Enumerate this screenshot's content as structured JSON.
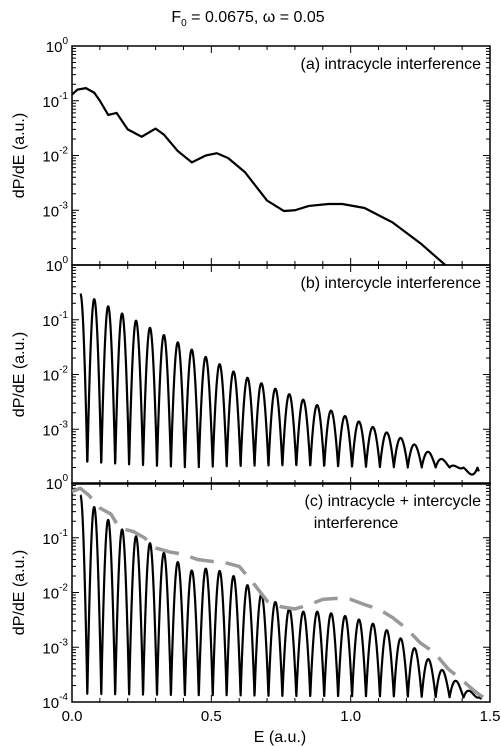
{
  "figure": {
    "title": "F",
    "title_sub": "0",
    "title_rest": " = 0.0675,   ω = 0.05",
    "xlabel": "E (a.u.)",
    "ylabel": "dP/dE (a.u.)"
  },
  "chart_data": [
    {
      "type": "line",
      "panel": "a",
      "annotation": [
        "(a) intracycle interference"
      ],
      "xlim": [
        0,
        1.5
      ],
      "ylim": [
        0.0001,
        1
      ],
      "yscale": "log",
      "y_tick_labels": [
        "10^0",
        "10^-1",
        "10^-2",
        "10^-3"
      ],
      "series": [
        {
          "color": "#000000",
          "x": [
            0.0,
            0.02,
            0.05,
            0.08,
            0.1,
            0.13,
            0.16,
            0.2,
            0.25,
            0.3,
            0.33,
            0.38,
            0.43,
            0.48,
            0.52,
            0.56,
            0.62,
            0.7,
            0.76,
            0.8,
            0.85,
            0.92,
            0.97,
            1.05,
            1.15,
            1.25,
            1.35,
            1.4
          ],
          "y": [
            0.13,
            0.16,
            0.17,
            0.14,
            0.1,
            0.055,
            0.06,
            0.03,
            0.022,
            0.031,
            0.024,
            0.012,
            0.0075,
            0.01,
            0.011,
            0.009,
            0.005,
            0.0015,
            0.00097,
            0.001,
            0.0012,
            0.0013,
            0.0013,
            0.0011,
            0.0006,
            0.00025,
            9e-05,
            5e-05
          ]
        }
      ]
    },
    {
      "type": "line",
      "panel": "b",
      "annotation": [
        "(b) intercycle interference"
      ],
      "xlim": [
        0,
        1.5
      ],
      "ylim": [
        0.0001,
        1
      ],
      "yscale": "log",
      "y_tick_labels": [
        "10^0",
        "10^-1",
        "10^-2",
        "10^-3"
      ],
      "series": [
        {
          "color": "#000000",
          "oscillating": true,
          "x_start": 0.03,
          "x_end": 1.46,
          "period": 0.05,
          "max_decades": [
            [
              0.0,
              -0.54
            ],
            [
              0.04,
              -0.52
            ],
            [
              0.3,
              -1.2
            ],
            [
              0.6,
              -2.0
            ],
            [
              0.9,
              -2.6
            ],
            [
              1.2,
              -3.2
            ],
            [
              1.46,
              -3.9
            ]
          ],
          "min_value": 0.0002
        }
      ]
    },
    {
      "type": "line",
      "panel": "c",
      "annotation": [
        "(c) intracycle + intercycle",
        "interference"
      ],
      "xlim": [
        0,
        1.5
      ],
      "ylim": [
        0.0001,
        1
      ],
      "yscale": "log",
      "y_tick_labels": [
        "10^0",
        "10^-1",
        "10^-2",
        "10^-3",
        "10^-4"
      ],
      "x_tick_labels": [
        "0.0",
        "0.5",
        "1.0",
        "1.5"
      ],
      "series": [
        {
          "color": "#000000",
          "oscillating": true,
          "x_start": 0.03,
          "x_end": 1.47,
          "period": 0.05,
          "max_decades": [
            [
              0.0,
              -0.22
            ],
            [
              0.04,
              -0.22
            ],
            [
              0.1,
              -0.55
            ],
            [
              0.16,
              -0.8
            ],
            [
              0.22,
              -0.95
            ],
            [
              0.28,
              -1.1
            ],
            [
              0.35,
              -1.35
            ],
            [
              0.43,
              -1.6
            ],
            [
              0.5,
              -1.55
            ],
            [
              0.58,
              -1.7
            ],
            [
              0.7,
              -2.1
            ],
            [
              0.8,
              -2.35
            ],
            [
              0.9,
              -2.35
            ],
            [
              1.0,
              -2.45
            ],
            [
              1.1,
              -2.6
            ],
            [
              1.2,
              -2.9
            ],
            [
              1.3,
              -3.3
            ],
            [
              1.4,
              -3.7
            ],
            [
              1.47,
              -3.95
            ]
          ],
          "min_value": 0.00012
        },
        {
          "color": "#999999",
          "dashed": true,
          "x": [
            0.0,
            0.03,
            0.06,
            0.1,
            0.14,
            0.17,
            0.22,
            0.26,
            0.3,
            0.35,
            0.4,
            0.45,
            0.5,
            0.55,
            0.6,
            0.65,
            0.7,
            0.75,
            0.8,
            0.85,
            0.9,
            0.95,
            1.0,
            1.05,
            1.1,
            1.15,
            1.2,
            1.25,
            1.3,
            1.35,
            1.4,
            1.45,
            1.5
          ],
          "y": [
            0.7,
            0.8,
            0.6,
            0.35,
            0.27,
            0.15,
            0.13,
            0.1,
            0.065,
            0.055,
            0.05,
            0.04,
            0.037,
            0.035,
            0.03,
            0.015,
            0.007,
            0.0055,
            0.005,
            0.006,
            0.0075,
            0.0078,
            0.0075,
            0.006,
            0.005,
            0.0035,
            0.0022,
            0.0012,
            0.0008,
            0.0004,
            0.00025,
            0.00015,
            0.0001
          ]
        }
      ]
    }
  ]
}
